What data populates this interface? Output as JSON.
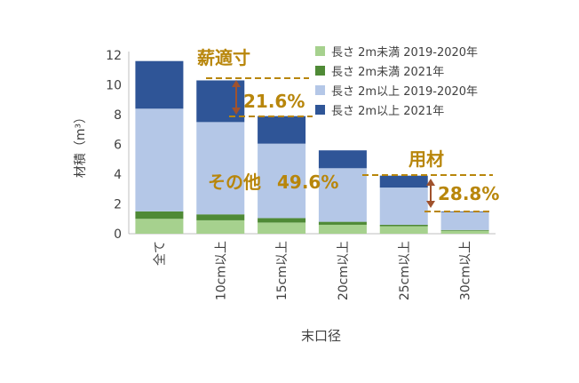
{
  "chart_data": {
    "type": "bar",
    "stacked": true,
    "categories": [
      "全て",
      "10cm以上",
      "15cm以上",
      "20cm以上",
      "25cm以上",
      "30cm以上"
    ],
    "series": [
      {
        "name": "長さ 2m未満 2019-2020年",
        "color": "#a6d18e",
        "values": [
          1.0,
          0.9,
          0.75,
          0.6,
          0.5,
          0.2
        ]
      },
      {
        "name": "長さ 2m未満 2021年",
        "color": "#4f8a36",
        "values": [
          0.5,
          0.4,
          0.3,
          0.2,
          0.1,
          0.05
        ]
      },
      {
        "name": "長さ 2m以上 2019-2020年",
        "color": "#b4c7e7",
        "values": [
          6.9,
          6.2,
          5.0,
          3.6,
          2.5,
          1.2
        ]
      },
      {
        "name": "長さ 2m以上 2021年",
        "color": "#2f5597",
        "values": [
          3.2,
          2.8,
          1.85,
          1.2,
          0.8,
          0.05
        ]
      }
    ],
    "xlabel": "末口径",
    "ylabel": "材積（m³）",
    "ylim": [
      0,
      12
    ],
    "yticks": [
      "0",
      "2",
      "4",
      "6",
      "8",
      "10",
      "12"
    ],
    "legend_position": "top-right",
    "annotations": {
      "fuelwood_label": "薪適寸",
      "fuelwood_pct": "21.6%",
      "other_label": "その他",
      "other_pct": "49.6%",
      "timber_label": "用材",
      "timber_pct": "28.8%",
      "text_color": "#b8860b",
      "arrow_color": "#a0522d"
    }
  }
}
